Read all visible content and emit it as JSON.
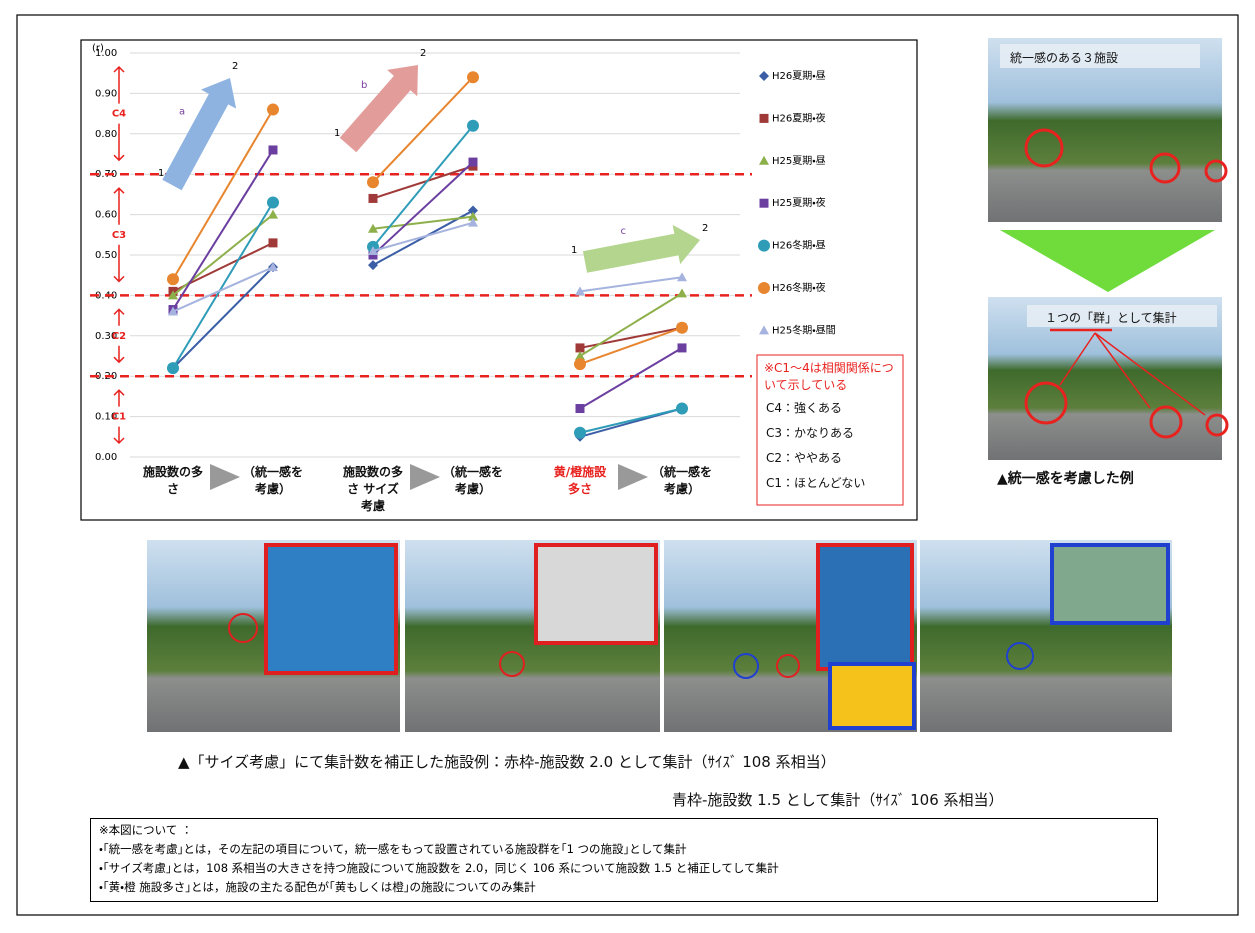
{
  "chart_data": {
    "type": "line",
    "y_label": "(r)",
    "categories": [
      "施設数の多さ",
      "（統一感を考慮）",
      "施設数の多さ サイズ考慮",
      "（統一感を考慮）",
      "黄/橙施設多さ",
      "（統一感を考慮）"
    ],
    "ylim": [
      0,
      1
    ],
    "yticks": [
      {
        "value": 0,
        "label": "0.00"
      },
      {
        "value": 0.1,
        "label": "0.10"
      },
      {
        "value": 0.2,
        "label": "0.20"
      },
      {
        "value": 0.3,
        "label": "0.30"
      },
      {
        "value": 0.4,
        "label": "0.40"
      },
      {
        "value": 0.5,
        "label": "0.50"
      },
      {
        "value": 0.6,
        "label": "0.60"
      },
      {
        "value": 0.7,
        "label": "0.70"
      },
      {
        "value": 0.8,
        "label": "0.80"
      },
      {
        "value": 0.9,
        "label": "0.90"
      },
      {
        "value": 1,
        "label": "1.00"
      }
    ],
    "grid": true,
    "thresholds": [
      0.2,
      0.4,
      0.7
    ],
    "threshold_color": "#e8221f",
    "zones": [
      "C1",
      "C2",
      "C3",
      "C4"
    ],
    "arrows": [
      {
        "letter": "a",
        "start": "1",
        "end": "2",
        "color": "#8fb3e0"
      },
      {
        "letter": "b",
        "start": "1",
        "end": "2",
        "color": "#e29d9a"
      },
      {
        "letter": "c",
        "start": "1",
        "end": "2",
        "color": "#b4d58e"
      }
    ],
    "legend_position": "right",
    "series": [
      {
        "name": "H26夏期・昼",
        "color": "#3b5ea6",
        "marker": "diamond",
        "values": [
          0.22,
          0.47,
          0.475,
          0.61,
          0.05,
          0.12
        ]
      },
      {
        "name": "H26夏期・夜",
        "color": "#a03a38",
        "marker": "square",
        "values": [
          0.41,
          0.53,
          0.64,
          0.72,
          0.27,
          0.32
        ]
      },
      {
        "name": "H25夏期・昼",
        "color": "#8db04a",
        "marker": "triangle",
        "values": [
          0.4,
          0.6,
          0.565,
          0.595,
          0.25,
          0.405
        ]
      },
      {
        "name": "H25夏期・夜",
        "color": "#6b3fa0",
        "marker": "square",
        "values": [
          0.365,
          0.76,
          0.5,
          0.73,
          0.12,
          0.27
        ]
      },
      {
        "name": "H26冬期・昼",
        "color": "#2f9cb8",
        "marker": "circle",
        "values": [
          0.22,
          0.63,
          0.52,
          0.82,
          0.06,
          0.12
        ]
      },
      {
        "name": "H26冬期・夜",
        "color": "#e8862f",
        "marker": "circle",
        "values": [
          0.44,
          0.86,
          0.68,
          0.94,
          0.23,
          0.32
        ]
      },
      {
        "name": "H25冬期・昼間",
        "color": "#a5b3de",
        "marker": "triangle",
        "values": [
          0.36,
          0.47,
          0.51,
          0.58,
          0.41,
          0.445
        ]
      }
    ],
    "note": {
      "title": "※C1～4は相関関係について示している",
      "items": [
        "C4：強くある",
        "C3：かなりある",
        "C2：ややある",
        "C1：ほとんどない"
      ]
    }
  },
  "photos": {
    "top_label": "統一感のある３施設",
    "bottom_label": "１つの「群」として集計",
    "caption": "▲統一感を考慮した例"
  },
  "size_examples": {
    "caption_lines": [
      "▲「サイズ考慮」にて集計数を補正した施設例：赤枠-施設数 2.0 として集計（ｻｲｽﾞ 108 系相当）",
      "青枠-施設数 1.5 として集計（ｻｲｽﾞ 106 系相当）"
    ]
  },
  "notes": {
    "title": "※本図について ：",
    "lines": [
      "・｢統一感を考慮｣とは，その左記の項目について，統一感をもって設置されている施設群を｢1 つの施設｣として集計",
      "・｢サイズ考慮｣とは，108 系相当の大きさを持つ施設について施設数を 2.0，同じく 106 系について施設数 1.5 と補正してして集計",
      "・｢黄・橙 施設多さ｣とは，施設の主たる配色が｢黄もしくは橙｣の施設についてのみ集計"
    ]
  }
}
